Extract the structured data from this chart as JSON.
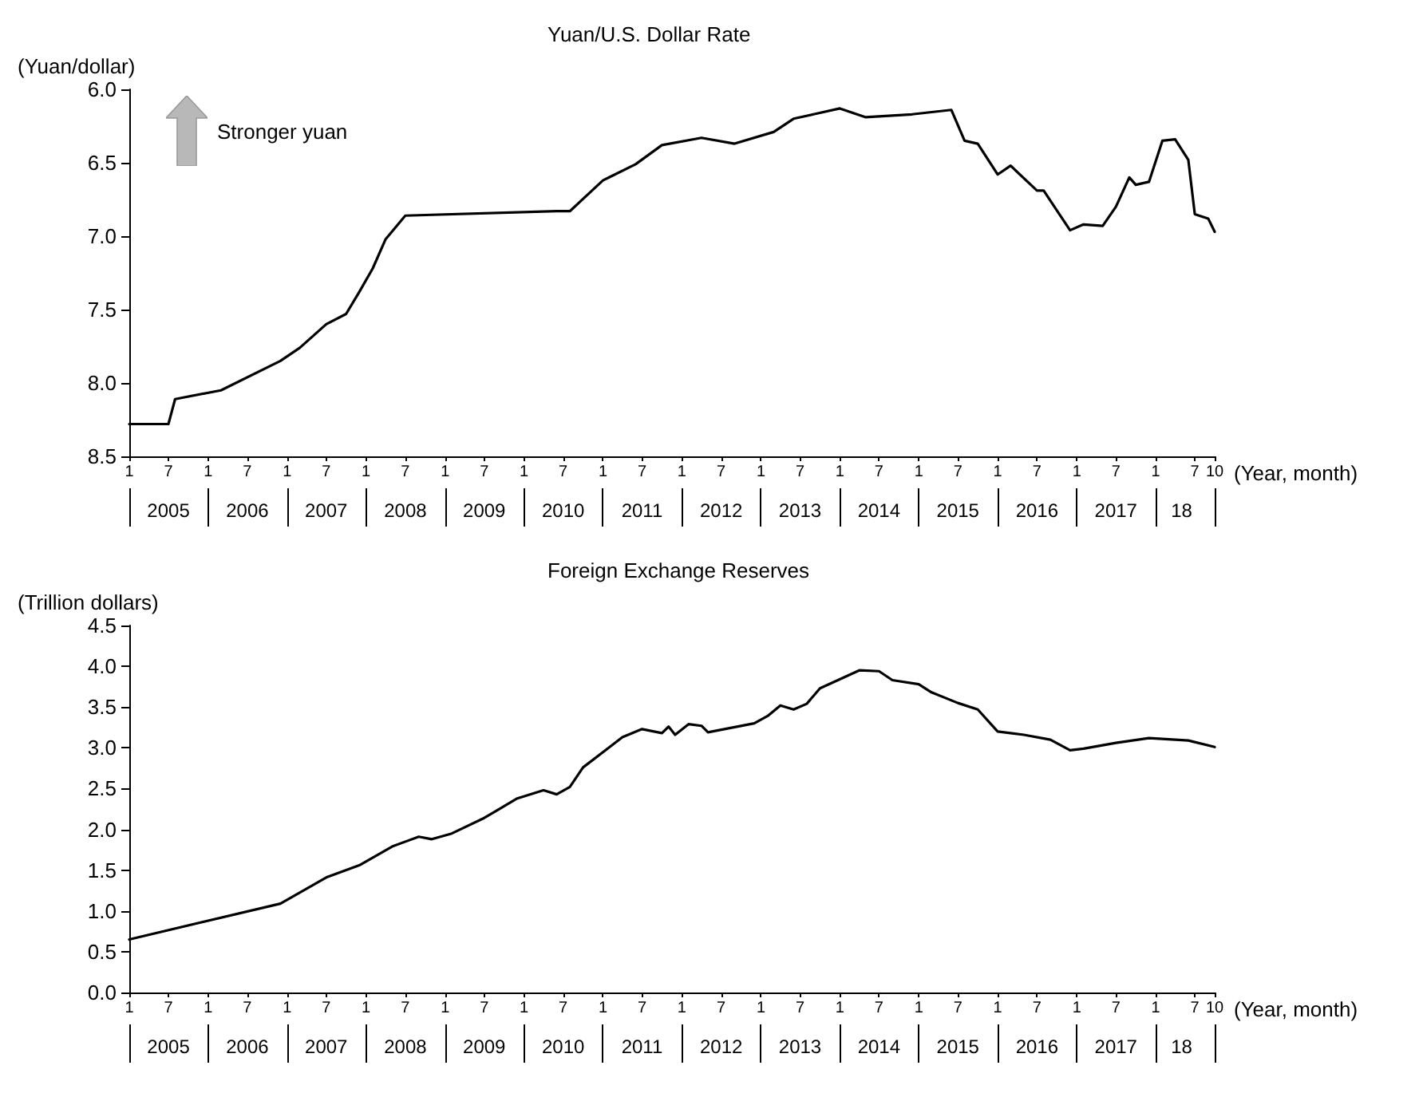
{
  "chart_data": [
    {
      "type": "line",
      "title": "Yuan/U.S. Dollar Rate",
      "ylabel": "(Yuan/dollar)",
      "xlabel": "(Year, month)",
      "annotations": [
        "Stronger yuan"
      ],
      "color": "#000000",
      "x": [
        "2005-01",
        "2005-07",
        "2005-08",
        "2006-03",
        "2006-12",
        "2007-03",
        "2007-07",
        "2007-10",
        "2007-12",
        "2008-02",
        "2008-04",
        "2008-07",
        "2010-06",
        "2010-08",
        "2011-01",
        "2011-06",
        "2011-10",
        "2012-04",
        "2012-09",
        "2013-03",
        "2013-06",
        "2013-09",
        "2014-01",
        "2014-05",
        "2014-12",
        "2015-06",
        "2015-08",
        "2015-10",
        "2016-01",
        "2016-03",
        "2016-07",
        "2016-08",
        "2016-12",
        "2017-02",
        "2017-05",
        "2017-07",
        "2017-09",
        "2017-10",
        "2017-12",
        "2018-02",
        "2018-04",
        "2018-06",
        "2018-07",
        "2018-09",
        "2018-10"
      ],
      "values": [
        8.28,
        8.28,
        8.11,
        8.05,
        7.85,
        7.76,
        7.6,
        7.53,
        7.38,
        7.22,
        7.02,
        6.86,
        6.83,
        6.83,
        6.62,
        6.51,
        6.38,
        6.33,
        6.37,
        6.29,
        6.2,
        6.17,
        6.13,
        6.19,
        6.17,
        6.14,
        6.35,
        6.37,
        6.58,
        6.52,
        6.69,
        6.69,
        6.96,
        6.92,
        6.93,
        6.8,
        6.6,
        6.65,
        6.63,
        6.35,
        6.34,
        6.48,
        6.85,
        6.88,
        6.97
      ],
      "xlim": [
        "2005-01",
        "2018-10"
      ],
      "x2lim": [
        "2005-01",
        "2018-10"
      ],
      "xticks": [
        {
          "value": "2005-01",
          "label": "1"
        },
        {
          "value": "2005-07",
          "label": "7"
        },
        {
          "value": "2006-01",
          "label": "1"
        },
        {
          "value": "2006-07",
          "label": "7"
        },
        {
          "value": "2007-01",
          "label": "1"
        },
        {
          "value": "2007-07",
          "label": "7"
        },
        {
          "value": "2008-01",
          "label": "1"
        },
        {
          "value": "2008-07",
          "label": "7"
        },
        {
          "value": "2009-01",
          "label": "1"
        },
        {
          "value": "2009-07",
          "label": "7"
        },
        {
          "value": "2010-01",
          "label": "1"
        },
        {
          "value": "2010-07",
          "label": "7"
        },
        {
          "value": "2011-01",
          "label": "1"
        },
        {
          "value": "2011-07",
          "label": "7"
        },
        {
          "value": "2012-01",
          "label": "1"
        },
        {
          "value": "2012-07",
          "label": "7"
        },
        {
          "value": "2013-01",
          "label": "1"
        },
        {
          "value": "2013-07",
          "label": "7"
        },
        {
          "value": "2014-01",
          "label": "1"
        },
        {
          "value": "2014-07",
          "label": "7"
        },
        {
          "value": "2015-01",
          "label": "1"
        },
        {
          "value": "2015-07",
          "label": "7"
        },
        {
          "value": "2016-01",
          "label": "1"
        },
        {
          "value": "2016-07",
          "label": "7"
        },
        {
          "value": "2017-01",
          "label": "1"
        },
        {
          "value": "2017-07",
          "label": "7"
        },
        {
          "value": "2018-01",
          "label": "1"
        },
        {
          "value": "2018-07",
          "label": "7"
        },
        {
          "value": "2018-10",
          "label": "10"
        }
      ],
      "x2ticks": [
        {
          "value": "2005-01",
          "label": null
        },
        {
          "value": "2005-07",
          "label": "2005"
        },
        {
          "value": "2006-01",
          "label": null
        },
        {
          "value": "2006-07",
          "label": "2006"
        },
        {
          "value": "2007-01",
          "label": null
        },
        {
          "value": "2007-07",
          "label": "2007"
        },
        {
          "value": "2008-01",
          "label": null
        },
        {
          "value": "2008-07",
          "label": "2008"
        },
        {
          "value": "2009-01",
          "label": null
        },
        {
          "value": "2009-07",
          "label": "2009"
        },
        {
          "value": "2010-01",
          "label": null
        },
        {
          "value": "2010-07",
          "label": "2010"
        },
        {
          "value": "2011-01",
          "label": null
        },
        {
          "value": "2011-07",
          "label": "2011"
        },
        {
          "value": "2012-01",
          "label": null
        },
        {
          "value": "2012-07",
          "label": "2012"
        },
        {
          "value": "2013-01",
          "label": null
        },
        {
          "value": "2013-07",
          "label": "2013"
        },
        {
          "value": "2014-01",
          "label": null
        },
        {
          "value": "2014-07",
          "label": "2014"
        },
        {
          "value": "2015-01",
          "label": null
        },
        {
          "value": "2015-07",
          "label": "2015"
        },
        {
          "value": "2016-01",
          "label": null
        },
        {
          "value": "2016-07",
          "label": "2016"
        },
        {
          "value": "2017-01",
          "label": null
        },
        {
          "value": "2017-07",
          "label": "2017"
        },
        {
          "value": "2018-01",
          "label": null
        },
        {
          "value": "2018-05",
          "label": "18"
        },
        {
          "value": "2018-10",
          "label": null
        }
      ],
      "ylim": [
        8.5,
        6.0
      ],
      "yticks": [
        {
          "value": 6,
          "label": "6.0"
        },
        6.5,
        {
          "value": 7,
          "label": "7.0"
        },
        7.5,
        {
          "value": 8,
          "label": "8.0"
        },
        8.5
      ]
    },
    {
      "type": "line",
      "title": "Foreign Exchange Reserves",
      "ylabel": "(Trillion dollars)",
      "xlabel": "(Year, month)",
      "color": "#000000",
      "x": [
        "2005-01",
        "2006-12",
        "2007-07",
        "2007-12",
        "2008-05",
        "2008-09",
        "2008-11",
        "2009-02",
        "2009-07",
        "2009-12",
        "2010-04",
        "2010-06",
        "2010-08",
        "2010-10",
        "2011-04",
        "2011-07",
        "2011-10",
        "2011-11",
        "2011-12",
        "2012-02",
        "2012-04",
        "2012-05",
        "2012-12",
        "2013-02",
        "2013-04",
        "2013-06",
        "2013-08",
        "2013-10",
        "2014-04",
        "2014-07",
        "2014-09",
        "2015-01",
        "2015-03",
        "2015-07",
        "2015-10",
        "2016-01",
        "2016-05",
        "2016-09",
        "2016-12",
        "2017-02",
        "2017-07",
        "2017-12",
        "2018-06",
        "2018-10"
      ],
      "values": [
        0.65,
        1.09,
        1.41,
        1.56,
        1.79,
        1.91,
        1.88,
        1.95,
        2.14,
        2.38,
        2.48,
        2.43,
        2.52,
        2.76,
        3.13,
        3.23,
        3.18,
        3.26,
        3.16,
        3.29,
        3.27,
        3.19,
        3.3,
        3.39,
        3.52,
        3.47,
        3.54,
        3.73,
        3.95,
        3.94,
        3.83,
        3.78,
        3.68,
        3.55,
        3.47,
        3.2,
        3.16,
        3.1,
        2.97,
        2.99,
        3.06,
        3.12,
        3.09,
        3.01
      ],
      "xlim": [
        "2005-01",
        "2018-10"
      ],
      "x2lim": [
        "2005-01",
        "2018-10"
      ],
      "xticks": [
        {
          "value": "2005-01",
          "label": "1"
        },
        {
          "value": "2005-07",
          "label": "7"
        },
        {
          "value": "2006-01",
          "label": "1"
        },
        {
          "value": "2006-07",
          "label": "7"
        },
        {
          "value": "2007-01",
          "label": "1"
        },
        {
          "value": "2007-07",
          "label": "7"
        },
        {
          "value": "2008-01",
          "label": "1"
        },
        {
          "value": "2008-07",
          "label": "7"
        },
        {
          "value": "2009-01",
          "label": "1"
        },
        {
          "value": "2009-07",
          "label": "7"
        },
        {
          "value": "2010-01",
          "label": "1"
        },
        {
          "value": "2010-07",
          "label": "7"
        },
        {
          "value": "2011-01",
          "label": "1"
        },
        {
          "value": "2011-07",
          "label": "7"
        },
        {
          "value": "2012-01",
          "label": "1"
        },
        {
          "value": "2012-07",
          "label": "7"
        },
        {
          "value": "2013-01",
          "label": "1"
        },
        {
          "value": "2013-07",
          "label": "7"
        },
        {
          "value": "2014-01",
          "label": "1"
        },
        {
          "value": "2014-07",
          "label": "7"
        },
        {
          "value": "2015-01",
          "label": "1"
        },
        {
          "value": "2015-07",
          "label": "7"
        },
        {
          "value": "2016-01",
          "label": "1"
        },
        {
          "value": "2016-07",
          "label": "7"
        },
        {
          "value": "2017-01",
          "label": "1"
        },
        {
          "value": "2017-07",
          "label": "7"
        },
        {
          "value": "2018-01",
          "label": "1"
        },
        {
          "value": "2018-07",
          "label": "7"
        },
        {
          "value": "2018-10",
          "label": "10"
        }
      ],
      "x2ticks": [
        {
          "value": "2005-01",
          "label": null
        },
        {
          "value": "2005-07",
          "label": "2005"
        },
        {
          "value": "2006-01",
          "label": null
        },
        {
          "value": "2006-07",
          "label": "2006"
        },
        {
          "value": "2007-01",
          "label": null
        },
        {
          "value": "2007-07",
          "label": "2007"
        },
        {
          "value": "2008-01",
          "label": null
        },
        {
          "value": "2008-07",
          "label": "2008"
        },
        {
          "value": "2009-01",
          "label": null
        },
        {
          "value": "2009-07",
          "label": "2009"
        },
        {
          "value": "2010-01",
          "label": null
        },
        {
          "value": "2010-07",
          "label": "2010"
        },
        {
          "value": "2011-01",
          "label": null
        },
        {
          "value": "2011-07",
          "label": "2011"
        },
        {
          "value": "2012-01",
          "label": null
        },
        {
          "value": "2012-07",
          "label": "2012"
        },
        {
          "value": "2013-01",
          "label": null
        },
        {
          "value": "2013-07",
          "label": "2013"
        },
        {
          "value": "2014-01",
          "label": null
        },
        {
          "value": "2014-07",
          "label": "2014"
        },
        {
          "value": "2015-01",
          "label": null
        },
        {
          "value": "2015-07",
          "label": "2015"
        },
        {
          "value": "2016-01",
          "label": null
        },
        {
          "value": "2016-07",
          "label": "2016"
        },
        {
          "value": "2017-01",
          "label": null
        },
        {
          "value": "2017-07",
          "label": "2017"
        },
        {
          "value": "2018-01",
          "label": null
        },
        {
          "value": "2018-05",
          "label": "18"
        },
        {
          "value": "2018-10",
          "label": null
        }
      ],
      "ylim": [
        0,
        4.5
      ],
      "yticks": [
        {
          "value": 0,
          "label": "0.0"
        },
        0.5,
        {
          "value": 1,
          "label": "1.0"
        },
        1.5,
        {
          "value": 2,
          "label": "2.0"
        },
        2.5,
        {
          "value": 3,
          "label": "3.0"
        },
        3.5,
        {
          "value": 4,
          "label": "4.0"
        },
        4.5
      ]
    }
  ]
}
